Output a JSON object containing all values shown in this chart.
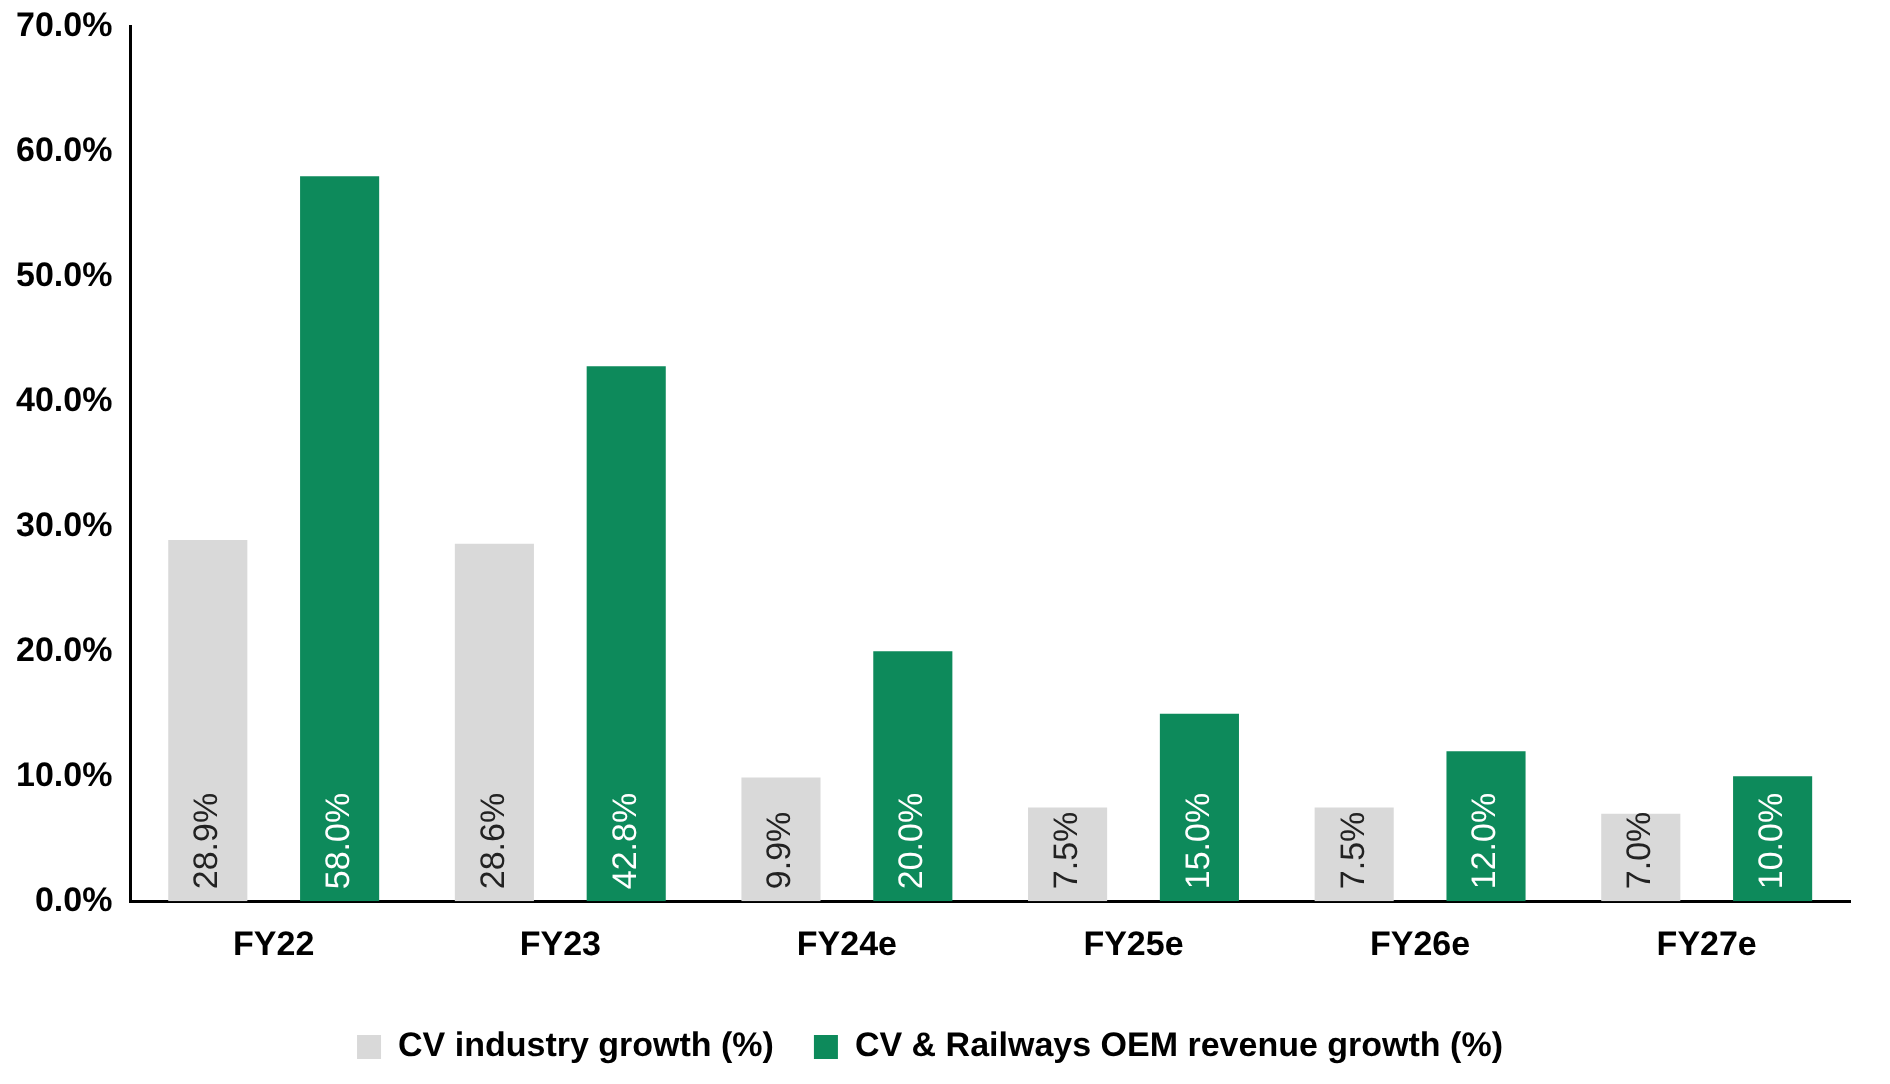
{
  "chart_data": {
    "type": "bar",
    "categories": [
      "FY22",
      "FY23",
      "FY24e",
      "FY25e",
      "FY26e",
      "FY27e"
    ],
    "series": [
      {
        "name": "CV industry growth (%)",
        "color": "#d9d9d9",
        "values": [
          28.9,
          28.6,
          9.9,
          7.5,
          7.5,
          7.0
        ],
        "value_labels": [
          "28.9%",
          "28.6%",
          "9.9%",
          "7.5%",
          "7.5%",
          "7.0%"
        ]
      },
      {
        "name": "CV & Railways OEM revenue growth (%)",
        "color": "#0d8a5b",
        "values": [
          58.0,
          42.8,
          20.0,
          15.0,
          12.0,
          10.0
        ],
        "value_labels": [
          "58.0%",
          "42.8%",
          "20.0%",
          "15.0%",
          "12.0%",
          "10.0%"
        ]
      }
    ],
    "ylim": [
      0,
      70
    ],
    "yticks": [
      {
        "value": 0,
        "label": "0.0%"
      },
      {
        "value": 10,
        "label": "10.0%"
      },
      {
        "value": 20,
        "label": "20.0%"
      },
      {
        "value": 30,
        "label": "30.0%"
      },
      {
        "value": 40,
        "label": "40.0%"
      },
      {
        "value": 50,
        "label": "50.0%"
      },
      {
        "value": 60,
        "label": "60.0%"
      },
      {
        "value": 70,
        "label": "70.0%"
      }
    ],
    "grid": false,
    "legend": "bottom"
  }
}
